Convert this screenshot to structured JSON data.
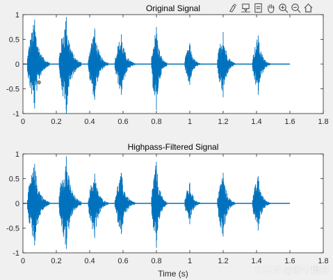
{
  "toolbar": {
    "icons": [
      "brush-icon",
      "data-tips-icon",
      "export-icon",
      "pan-hand-icon",
      "zoom-in-icon",
      "zoom-out-icon",
      "home-icon"
    ]
  },
  "watermark": "CSDN @笨牛慢耕",
  "colors": {
    "signal": "#0072bd",
    "marker": "#8a8a6a",
    "axes_bg": "#ffffff",
    "figure_bg": "#f0f0f0"
  },
  "chart_data": [
    {
      "type": "line",
      "title": "Original Signal",
      "xlabel": "",
      "ylabel": "",
      "xlim": [
        0,
        1.8
      ],
      "ylim": [
        -1,
        1
      ],
      "xticks": [
        "0",
        "0.2",
        "0.4",
        "0.6",
        "0.8",
        "1",
        "1.2",
        "1.4",
        "1.6",
        "1.8"
      ],
      "yticks": [
        "-1",
        "-0.5",
        "0",
        "0.5",
        "1"
      ],
      "signal_end": 1.6,
      "bursts": [
        {
          "center": 0.07,
          "width": 0.1,
          "pos": 0.9,
          "neg": -0.9
        },
        {
          "center": 0.26,
          "width": 0.1,
          "pos": 0.95,
          "neg": -1.0
        },
        {
          "center": 0.43,
          "width": 0.09,
          "pos": 0.72,
          "neg": -0.72
        },
        {
          "center": 0.59,
          "width": 0.09,
          "pos": 0.6,
          "neg": -0.62
        },
        {
          "center": 0.8,
          "width": 0.07,
          "pos": 0.75,
          "neg": -0.93
        },
        {
          "center": 1.0,
          "width": 0.07,
          "pos": 0.42,
          "neg": -0.42
        },
        {
          "center": 1.2,
          "width": 0.08,
          "pos": 0.65,
          "neg": -0.67
        },
        {
          "center": 1.41,
          "width": 0.08,
          "pos": 0.58,
          "neg": -0.62
        }
      ],
      "marker": {
        "x": 0.096,
        "y": -0.37
      },
      "grid": false,
      "legend": "none"
    },
    {
      "type": "line",
      "title": "Highpass-Filtered Signal",
      "xlabel": "Time (s)",
      "ylabel": "",
      "xlim": [
        0,
        1.8
      ],
      "ylim": [
        -1,
        1
      ],
      "xticks": [
        "0",
        "0.2",
        "0.4",
        "0.6",
        "0.8",
        "1",
        "1.2",
        "1.4",
        "1.6",
        "1.8"
      ],
      "yticks": [
        "-1",
        "-0.5",
        "0",
        "0.5",
        "1"
      ],
      "signal_end": 1.6,
      "bursts": [
        {
          "center": 0.07,
          "width": 0.1,
          "pos": 0.8,
          "neg": -0.85
        },
        {
          "center": 0.26,
          "width": 0.1,
          "pos": 0.95,
          "neg": -0.92
        },
        {
          "center": 0.43,
          "width": 0.09,
          "pos": 0.6,
          "neg": -0.7
        },
        {
          "center": 0.59,
          "width": 0.09,
          "pos": 0.62,
          "neg": -0.62
        },
        {
          "center": 0.8,
          "width": 0.07,
          "pos": 0.84,
          "neg": -0.9
        },
        {
          "center": 1.0,
          "width": 0.07,
          "pos": 0.42,
          "neg": -0.42
        },
        {
          "center": 1.2,
          "width": 0.08,
          "pos": 0.62,
          "neg": -0.67
        },
        {
          "center": 1.41,
          "width": 0.08,
          "pos": 0.55,
          "neg": -0.55
        }
      ],
      "grid": false,
      "legend": "none"
    }
  ]
}
